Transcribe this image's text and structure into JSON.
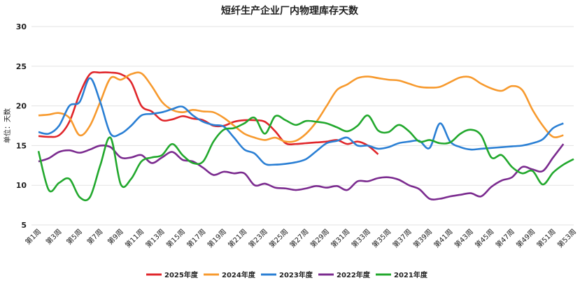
{
  "chart_data": {
    "type": "line",
    "title": "短纤生产企业厂内物理库存天数",
    "y_label": "单位：天数",
    "categories": [
      "第1周",
      null,
      "第3周",
      null,
      "第5周",
      null,
      "第7周",
      null,
      "第9周",
      null,
      "第11周",
      null,
      "第13周",
      null,
      "第15周",
      null,
      "第17周",
      null,
      "第19周",
      null,
      "第21周",
      null,
      "第23周",
      null,
      "第25周",
      null,
      "第27周",
      null,
      "第29周",
      null,
      "第31周",
      null,
      "第33周",
      null,
      "第35周",
      null,
      "第37周",
      null,
      "第39周",
      null,
      "第41周",
      null,
      "第43周",
      null,
      "第45周",
      null,
      "第47周",
      null,
      "第49周",
      null,
      "第51周",
      null,
      "第53周"
    ],
    "ylim": [
      5,
      30
    ],
    "yticks": [
      5,
      10,
      15,
      20,
      25,
      30
    ],
    "grid": true,
    "legend": "bottom",
    "series": [
      {
        "name": "2025年度",
        "color": "#e0262b",
        "values": [
          16.2,
          16.1,
          16.3,
          18,
          21.5,
          24,
          24.2,
          24.2,
          24,
          23,
          20,
          19.3,
          18.2,
          18.3,
          18.7,
          18.4,
          18.2,
          17.5,
          17.5,
          18,
          18.2,
          18.2,
          18,
          16.8,
          15.3,
          15.2,
          15.3,
          15.4,
          15.5,
          15.7,
          15.2,
          15.5,
          15,
          13.9,
          null,
          null,
          null,
          null,
          null,
          null,
          null,
          null,
          null,
          null,
          null,
          null,
          null,
          null,
          null,
          null,
          null,
          null,
          null
        ]
      },
      {
        "name": "2024年度",
        "color": "#f79a2e",
        "values": [
          18.8,
          18.9,
          19.1,
          18.5,
          16.3,
          17.5,
          20.5,
          23.5,
          23.3,
          24,
          24.1,
          22.5,
          20.5,
          19.5,
          19.2,
          19.5,
          19.3,
          19.2,
          18.5,
          17.5,
          16.5,
          16,
          15.7,
          16,
          15.5,
          15.6,
          16.5,
          18,
          20,
          22,
          22.7,
          23.5,
          23.7,
          23.5,
          23.3,
          23.2,
          22.8,
          22.4,
          22.3,
          22.4,
          23,
          23.6,
          23.6,
          22.8,
          22.2,
          21.9,
          22.5,
          22,
          19.5,
          17.5,
          16.1,
          16.3,
          null
        ]
      },
      {
        "name": "2023年度",
        "color": "#2a7fd4",
        "values": [
          16.7,
          16.5,
          17.5,
          20,
          20.5,
          23.5,
          20.5,
          16.5,
          16.5,
          17.5,
          18.8,
          19,
          19.2,
          19.6,
          19.9,
          18.8,
          18,
          17.6,
          17.4,
          16,
          14.5,
          14,
          12.7,
          12.6,
          12.7,
          12.9,
          13.3,
          14.3,
          15.3,
          15.6,
          16,
          15,
          15,
          14.6,
          14.8,
          15.3,
          15.5,
          15.6,
          14.7,
          17.8,
          15.5,
          14.8,
          14.5,
          14.6,
          14.7,
          14.8,
          14.9,
          15,
          15.3,
          15.8,
          17.2,
          17.8,
          null
        ]
      },
      {
        "name": "2022年度",
        "color": "#7b2b8f",
        "values": [
          13,
          13.4,
          14.2,
          14.4,
          14.1,
          14.5,
          15,
          14.8,
          13.5,
          13.5,
          13.8,
          12.8,
          13.5,
          14.2,
          13.2,
          13,
          12.2,
          11.3,
          11.7,
          11.5,
          11.5,
          10,
          10.2,
          9.7,
          9.6,
          9.4,
          9.6,
          9.9,
          9.7,
          9.9,
          9.4,
          10.5,
          10.5,
          10.9,
          11,
          10.7,
          10,
          9.5,
          8.3,
          8.3,
          8.6,
          8.8,
          9,
          8.6,
          9.8,
          10.6,
          11,
          12.3,
          12,
          11.8,
          13.5,
          15.2,
          null
        ]
      },
      {
        "name": "2021年度",
        "color": "#22a82d",
        "values": [
          14.3,
          9.4,
          10.3,
          10.8,
          8.5,
          8.5,
          12.5,
          16,
          10.1,
          10.8,
          13,
          13.5,
          13.8,
          15.2,
          13.8,
          12.8,
          13,
          15.5,
          17,
          17.2,
          17.8,
          18.5,
          16.5,
          18.7,
          18.2,
          17.6,
          18.1,
          18,
          17.8,
          17.3,
          16.8,
          17.5,
          18.8,
          16.9,
          16.7,
          17.6,
          16.8,
          15.5,
          15.7,
          15.3,
          15.4,
          16.5,
          17,
          16.3,
          13.5,
          13.8,
          12.3,
          11.5,
          11.8,
          10.1,
          11.6,
          12.6,
          13.3
        ]
      }
    ]
  }
}
